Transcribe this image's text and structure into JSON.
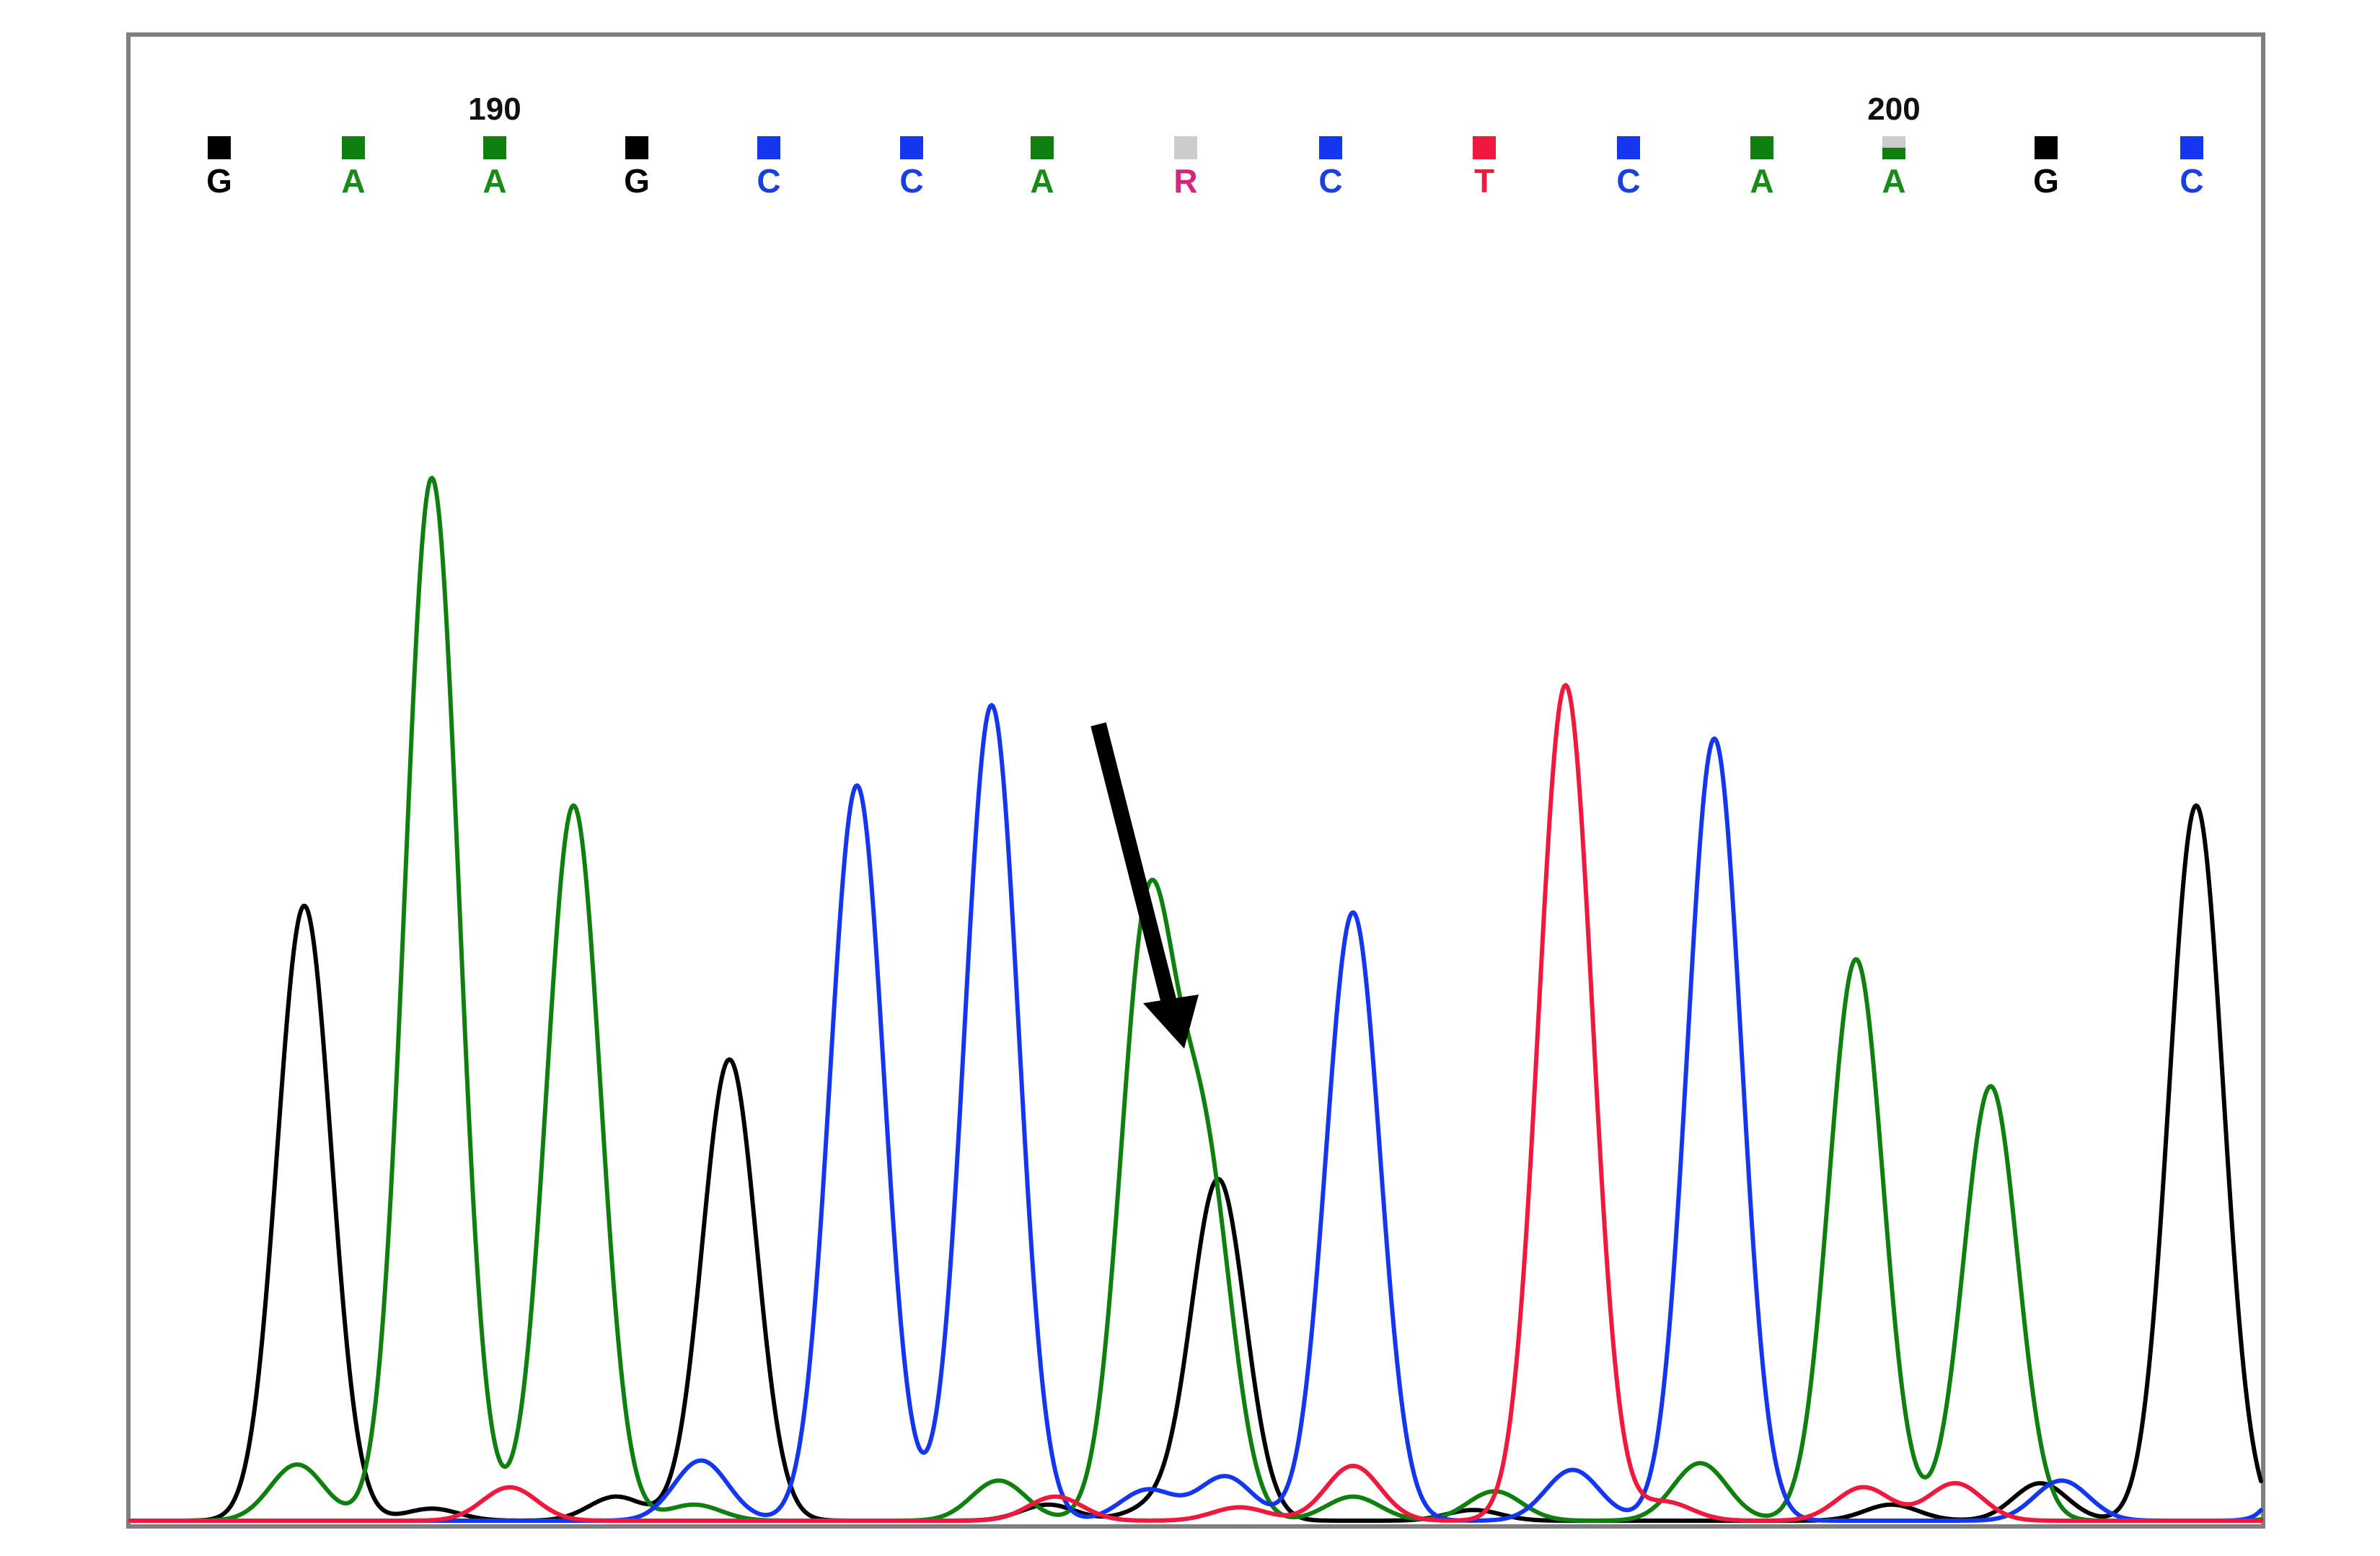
{
  "chart_data": {
    "type": "line",
    "title": "",
    "xlabel": "",
    "ylabel": "",
    "grid": false,
    "legend": "none",
    "ylim": [
      0,
      100
    ],
    "position_labels": [
      {
        "text": "190",
        "base_index": 2
      },
      {
        "text": "200",
        "base_index": 12
      }
    ],
    "base_calls": [
      {
        "letter": "G",
        "color": "#000000",
        "marker": "#000000"
      },
      {
        "letter": "A",
        "color": "#1a8a1a",
        "marker": "#0f7f0f"
      },
      {
        "letter": "A",
        "color": "#1a8a1a",
        "marker": "#0f7f0f"
      },
      {
        "letter": "G",
        "color": "#000000",
        "marker": "#000000"
      },
      {
        "letter": "C",
        "color": "#1a3fe0",
        "marker": "#1336ee"
      },
      {
        "letter": "C",
        "color": "#1a3fe0",
        "marker": "#1336ee"
      },
      {
        "letter": "A",
        "color": "#1a8a1a",
        "marker": "#0f7f0f"
      },
      {
        "letter": "R",
        "color": "#d6257f",
        "marker": "#cccccc"
      },
      {
        "letter": "C",
        "color": "#1a3fe0",
        "marker": "#1336ee"
      },
      {
        "letter": "T",
        "color": "#f0183c",
        "marker": "#f0183c"
      },
      {
        "letter": "C",
        "color": "#1a3fe0",
        "marker": "#1336ee"
      },
      {
        "letter": "A",
        "color": "#1a8a1a",
        "marker": "#0f7f0f"
      },
      {
        "letter": "A",
        "color": "#1a8a1a",
        "marker": "#0f7f0f"
      },
      {
        "letter": "G",
        "color": "#000000",
        "marker": "#000000"
      },
      {
        "letter": "C",
        "color": "#1a3fe0",
        "marker": "#1336ee"
      }
    ],
    "series": [
      {
        "base": "G",
        "color": "#000000",
        "peaks": [
          {
            "x": 0.6,
            "height": 46
          },
          {
            "x": 3.6,
            "height": 34.5
          },
          {
            "x": 7.05,
            "height": 25.5
          },
          {
            "x": 13.95,
            "height": 53.5
          },
          {
            "x": 5.85,
            "height": 1.2
          },
          {
            "x": 6.6,
            "height": 1.0
          },
          {
            "x": 8.85,
            "height": 0.8
          },
          {
            "x": 11.8,
            "height": 1.2
          },
          {
            "x": 12.85,
            "height": 2.8
          },
          {
            "x": 2.8,
            "height": 1.8
          },
          {
            "x": 1.5,
            "height": 0.9
          }
        ]
      },
      {
        "base": "A",
        "color": "#0f7f0f",
        "peaks": [
          {
            "x": 1.5,
            "height": 78
          },
          {
            "x": 2.5,
            "height": 53.5
          },
          {
            "x": 6.55,
            "height": 44.5
          },
          {
            "x": 6.95,
            "height": 26.5
          },
          {
            "x": 11.55,
            "height": 42
          },
          {
            "x": 12.5,
            "height": 32.5
          },
          {
            "x": 0.55,
            "height": 4.2
          },
          {
            "x": 3.35,
            "height": 1.2
          },
          {
            "x": 5.5,
            "height": 3.0
          },
          {
            "x": 8.0,
            "height": 1.8
          },
          {
            "x": 9.0,
            "height": 2.2
          },
          {
            "x": 10.45,
            "height": 4.3
          },
          {
            "x": 14.9,
            "height": 2.8
          },
          {
            "x": 15.55,
            "height": 4.5
          }
        ]
      },
      {
        "base": "C",
        "color": "#1336ee",
        "peaks": [
          {
            "x": 4.5,
            "height": 55
          },
          {
            "x": 5.45,
            "height": 61
          },
          {
            "x": 8.0,
            "height": 45.5
          },
          {
            "x": 10.55,
            "height": 58.5
          },
          {
            "x": 14.95,
            "height": 47
          },
          {
            "x": 3.4,
            "height": 4.5
          },
          {
            "x": 6.55,
            "height": 2.3
          },
          {
            "x": 7.1,
            "height": 3.3
          },
          {
            "x": 9.55,
            "height": 3.8
          },
          {
            "x": 13.0,
            "height": 3.0
          }
        ]
      },
      {
        "base": "T",
        "color": "#f0183c",
        "peaks": [
          {
            "x": 9.5,
            "height": 62.5
          },
          {
            "x": 2.05,
            "height": 2.5
          },
          {
            "x": 5.9,
            "height": 1.8
          },
          {
            "x": 8.0,
            "height": 4.1
          },
          {
            "x": 11.6,
            "height": 2.5
          },
          {
            "x": 12.25,
            "height": 2.8
          },
          {
            "x": 7.2,
            "height": 1.0
          },
          {
            "x": 10.2,
            "height": 1.4
          }
        ]
      }
    ],
    "annotation": {
      "kind": "arrow",
      "target_base_index": 7
    }
  }
}
